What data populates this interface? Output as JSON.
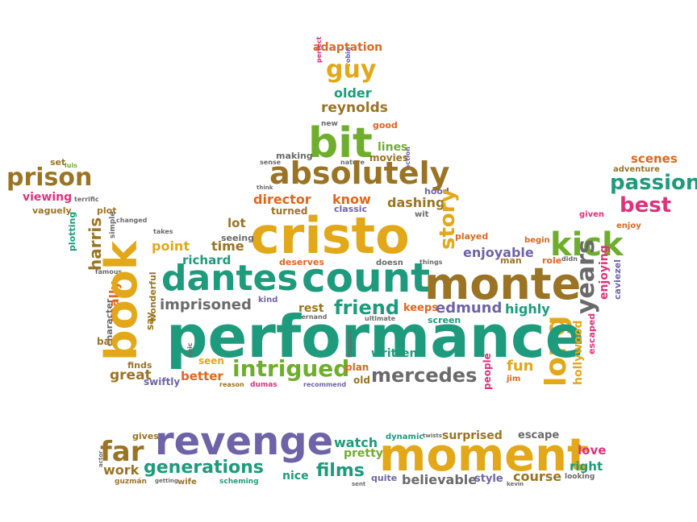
{
  "words": {
    "adaptation": "adaptation",
    "perfect": "perfect",
    "robin": "robin",
    "guy": "guy",
    "older": "older",
    "reynolds": "reynolds",
    "new": "new",
    "good": "good",
    "bit": "bit",
    "lines": "lines",
    "movies": "movies",
    "making": "making",
    "nature": "nature",
    "action": "action",
    "sense": "sense",
    "set": "set",
    "luis": "luis",
    "prison": "prison",
    "viewing": "viewing",
    "terrific": "terrific",
    "vaguely": "vaguely",
    "plot": "plot",
    "changed": "changed",
    "plotting": "plotting",
    "harris": "harris",
    "simple": "simple",
    "famous": "famous",
    "really": "really",
    "character": "character",
    "bad": "bad",
    "book": "book",
    "absolutely": "absolutely",
    "director": "director",
    "turned": "turned",
    "know": "know",
    "classic": "classic",
    "dashing": "dashing",
    "hood": "hood",
    "wit": "wit",
    "think": "think",
    "cristo": "cristo",
    "story": "story",
    "scenes": "scenes",
    "adventure": "adventure",
    "passion": "passion",
    "best": "best",
    "given": "given",
    "enjoy": "enjoy",
    "lot": "lot",
    "seeing": "seeing",
    "time": "time",
    "point": "point",
    "takes": "takes",
    "richard": "richard",
    "deserves": "deserves",
    "doesn": "doesn",
    "things": "things",
    "played": "played",
    "enjoyable": "enjoyable",
    "begin": "begin",
    "man": "man",
    "role": "role",
    "didn": "didn",
    "kick": "kick",
    "dantes": "dantes",
    "count": "count",
    "monte": "monte",
    "years": "years",
    "enjoying": "enjoying",
    "caviezel": "caviezel",
    "wonderful": "wonderful",
    "imprisoned": "imprisoned",
    "kind": "kind",
    "rest": "rest",
    "friend": "friend",
    "keeps": "keeps",
    "edmund": "edmund",
    "highly": "highly",
    "say": "say",
    "fernand": "fernand",
    "ultimate": "ultimate",
    "screen": "screen",
    "long": "long",
    "performance": "performance",
    "hollywood": "hollywood",
    "escaped": "escaped",
    "epic": "epic",
    "happen": "happen",
    "written": "written",
    "seen": "seen",
    "intrigued": "intrigued",
    "plan": "plan",
    "finds": "finds",
    "fun": "fun",
    "people": "people",
    "jim": "jim",
    "great": "great",
    "swiftly": "swiftly",
    "better": "better",
    "reason": "reason",
    "dumas": "dumas",
    "recommend": "recommend",
    "old": "old",
    "mercedes": "mercedes",
    "gives": "gives",
    "revenge": "revenge",
    "watch": "watch",
    "dynamic": "dynamic",
    "twists": "twists",
    "surprised": "surprised",
    "escape": "escape",
    "far": "far",
    "pretty": "pretty",
    "moment": "moment",
    "love": "love",
    "actor": "actor",
    "work": "work",
    "generations": "generations",
    "nice": "nice",
    "films": "films",
    "quite": "quite",
    "believable": "believable",
    "style": "style",
    "course": "course",
    "right": "right",
    "guzman": "guzmán",
    "getting": "getting",
    "wife": "wife",
    "scheming": "scheming",
    "sent": "sent",
    "kevin": "kevin",
    "looking": "looking"
  }
}
